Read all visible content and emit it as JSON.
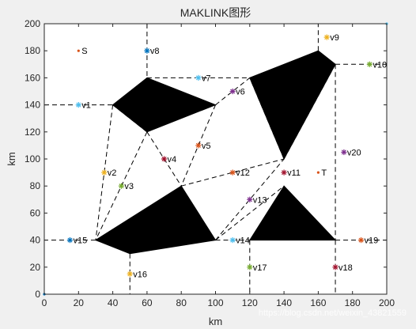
{
  "chart_data": {
    "type": "scatter",
    "title": "MAKLINK图形",
    "xlabel": "km",
    "ylabel": "km",
    "xlim": [
      0,
      200
    ],
    "ylim": [
      0,
      200
    ],
    "xticks": [
      0,
      20,
      40,
      60,
      80,
      100,
      120,
      140,
      160,
      180,
      200
    ],
    "yticks": [
      0,
      20,
      40,
      60,
      80,
      100,
      120,
      140,
      160,
      180,
      200
    ],
    "grid": false,
    "obstacles": [
      {
        "points": [
          [
            40,
            140
          ],
          [
            60,
            160
          ],
          [
            100,
            140
          ],
          [
            60,
            120
          ]
        ]
      },
      {
        "points": [
          [
            120,
            160
          ],
          [
            160,
            180
          ],
          [
            170,
            170
          ],
          [
            140,
            100
          ]
        ]
      },
      {
        "points": [
          [
            30,
            40
          ],
          [
            80,
            80
          ],
          [
            100,
            40
          ],
          [
            50,
            30
          ]
        ]
      },
      {
        "points": [
          [
            120,
            40
          ],
          [
            140,
            80
          ],
          [
            170,
            40
          ]
        ]
      }
    ],
    "links": [
      [
        [
          0,
          140
        ],
        [
          40,
          140
        ]
      ],
      [
        [
          60,
          200
        ],
        [
          60,
          160
        ]
      ],
      [
        [
          60,
          160
        ],
        [
          120,
          160
        ]
      ],
      [
        [
          100,
          140
        ],
        [
          120,
          160
        ]
      ],
      [
        [
          40,
          140
        ],
        [
          30,
          40
        ]
      ],
      [
        [
          60,
          120
        ],
        [
          40,
          140
        ]
      ],
      [
        [
          60,
          120
        ],
        [
          30,
          40
        ]
      ],
      [
        [
          60,
          120
        ],
        [
          80,
          80
        ]
      ],
      [
        [
          100,
          140
        ],
        [
          80,
          80
        ]
      ],
      [
        [
          80,
          80
        ],
        [
          140,
          100
        ]
      ],
      [
        [
          100,
          40
        ],
        [
          140,
          100
        ]
      ],
      [
        [
          140,
          100
        ],
        [
          120,
          160
        ]
      ],
      [
        [
          140,
          100
        ],
        [
          170,
          170
        ]
      ],
      [
        [
          170,
          170
        ],
        [
          200,
          170
        ]
      ],
      [
        [
          160,
          180
        ],
        [
          160,
          200
        ]
      ],
      [
        [
          100,
          40
        ],
        [
          120,
          40
        ]
      ],
      [
        [
          100,
          40
        ],
        [
          140,
          80
        ]
      ],
      [
        [
          170,
          40
        ],
        [
          200,
          40
        ]
      ],
      [
        [
          120,
          40
        ],
        [
          120,
          0
        ]
      ],
      [
        [
          170,
          40
        ],
        [
          170,
          0
        ]
      ],
      [
        [
          30,
          40
        ],
        [
          0,
          40
        ]
      ],
      [
        [
          50,
          30
        ],
        [
          50,
          0
        ]
      ],
      [
        [
          170,
          170
        ],
        [
          170,
          40
        ]
      ]
    ],
    "points": [
      {
        "label": "S",
        "x": 20,
        "y": 180,
        "color": "#d95319",
        "marker": "dot"
      },
      {
        "label": "T",
        "x": 160,
        "y": 90,
        "color": "#d95319",
        "marker": "dot"
      },
      {
        "label": "v1",
        "x": 20,
        "y": 140,
        "color": "#4dbeee",
        "marker": "star"
      },
      {
        "label": "v2",
        "x": 35,
        "y": 90,
        "color": "#edb120",
        "marker": "star"
      },
      {
        "label": "v3",
        "x": 45,
        "y": 80,
        "color": "#77ac30",
        "marker": "star"
      },
      {
        "label": "v4",
        "x": 70,
        "y": 100,
        "color": "#a2142f",
        "marker": "star"
      },
      {
        "label": "v5",
        "x": 90,
        "y": 110,
        "color": "#d95319",
        "marker": "star"
      },
      {
        "label": "v6",
        "x": 110,
        "y": 150,
        "color": "#7e2f8e",
        "marker": "star"
      },
      {
        "label": "v7",
        "x": 90,
        "y": 160,
        "color": "#4dbeee",
        "marker": "star"
      },
      {
        "label": "v8",
        "x": 60,
        "y": 180,
        "color": "#0072bd",
        "marker": "star"
      },
      {
        "label": "v9",
        "x": 165,
        "y": 190,
        "color": "#edb120",
        "marker": "star"
      },
      {
        "label": "v10",
        "x": 190,
        "y": 170,
        "color": "#77ac30",
        "marker": "star"
      },
      {
        "label": "v11",
        "x": 140,
        "y": 90,
        "color": "#a2142f",
        "marker": "star"
      },
      {
        "label": "v12",
        "x": 110,
        "y": 90,
        "color": "#d95319",
        "marker": "star"
      },
      {
        "label": "v13",
        "x": 120,
        "y": 70,
        "color": "#7e2f8e",
        "marker": "star"
      },
      {
        "label": "v14",
        "x": 110,
        "y": 40,
        "color": "#4dbeee",
        "marker": "star"
      },
      {
        "label": "v15",
        "x": 15,
        "y": 40,
        "color": "#0072bd",
        "marker": "star"
      },
      {
        "label": "v16",
        "x": 50,
        "y": 15,
        "color": "#edb120",
        "marker": "star"
      },
      {
        "label": "v17",
        "x": 120,
        "y": 20,
        "color": "#77ac30",
        "marker": "star"
      },
      {
        "label": "v18",
        "x": 170,
        "y": 20,
        "color": "#a2142f",
        "marker": "star"
      },
      {
        "label": "v19",
        "x": 185,
        "y": 40,
        "color": "#d95319",
        "marker": "star"
      },
      {
        "label": "v20",
        "x": 175,
        "y": 105,
        "color": "#7e2f8e",
        "marker": "star"
      }
    ],
    "corner_markers": [
      {
        "x": 0,
        "y": 0,
        "color": "#0072bd"
      },
      {
        "x": 200,
        "y": 200,
        "color": "#4dbeee"
      }
    ]
  },
  "watermark": "https://blog.csdn.net/weixin_43821559"
}
